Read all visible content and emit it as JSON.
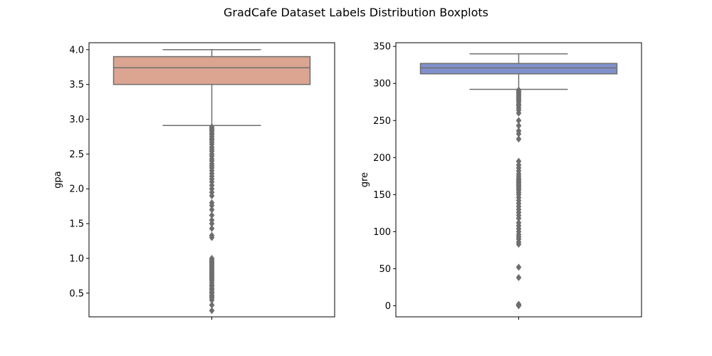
{
  "figure": {
    "title": "GradCafe Dataset Labels Distribution Boxplots"
  },
  "chart_data": [
    {
      "type": "box",
      "ylabel": "gpa",
      "xlabel": "",
      "ylim": [
        0.16,
        4.1
      ],
      "yticks": [
        0.5,
        1.0,
        1.5,
        2.0,
        2.5,
        3.0,
        3.5,
        4.0
      ],
      "ytick_labels": [
        "0.5",
        "1.0",
        "1.5",
        "2.0",
        "2.5",
        "3.0",
        "3.5",
        "4.0"
      ],
      "xticks": [
        ""
      ],
      "grid": false,
      "box_color": "#dba592",
      "edge_color": "#6e6e6e",
      "box": {
        "whisker_low": 2.91,
        "q1": 3.5,
        "median": 3.74,
        "q3": 3.9,
        "whisker_high": 4.0
      },
      "outliers": [
        2.89,
        2.87,
        2.85,
        2.83,
        2.8,
        2.78,
        2.75,
        2.72,
        2.7,
        2.67,
        2.64,
        2.6,
        2.57,
        2.54,
        2.5,
        2.47,
        2.43,
        2.4,
        2.36,
        2.33,
        2.3,
        2.26,
        2.22,
        2.18,
        2.14,
        2.1,
        2.05,
        2.0,
        1.95,
        1.9,
        1.8,
        1.76,
        1.7,
        1.62,
        1.55,
        1.5,
        1.43,
        1.33,
        1.3,
        1.0,
        0.98,
        0.96,
        0.94,
        0.92,
        0.9,
        0.88,
        0.86,
        0.84,
        0.82,
        0.8,
        0.78,
        0.76,
        0.74,
        0.72,
        0.7,
        0.68,
        0.65,
        0.62,
        0.6,
        0.57,
        0.55,
        0.52,
        0.5,
        0.47,
        0.45,
        0.43,
        0.4,
        0.33,
        0.25
      ]
    },
    {
      "type": "box",
      "ylabel": "gre",
      "xlabel": "",
      "ylim": [
        -15,
        355
      ],
      "yticks": [
        0,
        50,
        100,
        150,
        200,
        250,
        300,
        350
      ],
      "ytick_labels": [
        "0",
        "50",
        "100",
        "150",
        "200",
        "250",
        "300",
        "350"
      ],
      "xticks": [
        ""
      ],
      "grid": false,
      "box_color": "#8090cc",
      "edge_color": "#6e6e6e",
      "box": {
        "whisker_low": 292,
        "q1": 313,
        "median": 321,
        "q3": 327,
        "whisker_high": 340
      },
      "outliers": [
        291,
        289,
        287,
        285,
        283,
        281,
        279,
        277,
        275,
        272,
        270,
        267,
        264,
        260,
        250,
        243,
        236,
        232,
        225,
        195,
        190,
        186,
        182,
        178,
        175,
        172,
        170,
        168,
        166,
        164,
        162,
        160,
        158,
        156,
        153,
        150,
        146,
        142,
        138,
        134,
        130,
        126,
        122,
        118,
        112,
        108,
        104,
        100,
        96,
        93,
        90,
        86,
        83,
        52,
        38,
        2,
        1,
        0
      ]
    }
  ]
}
